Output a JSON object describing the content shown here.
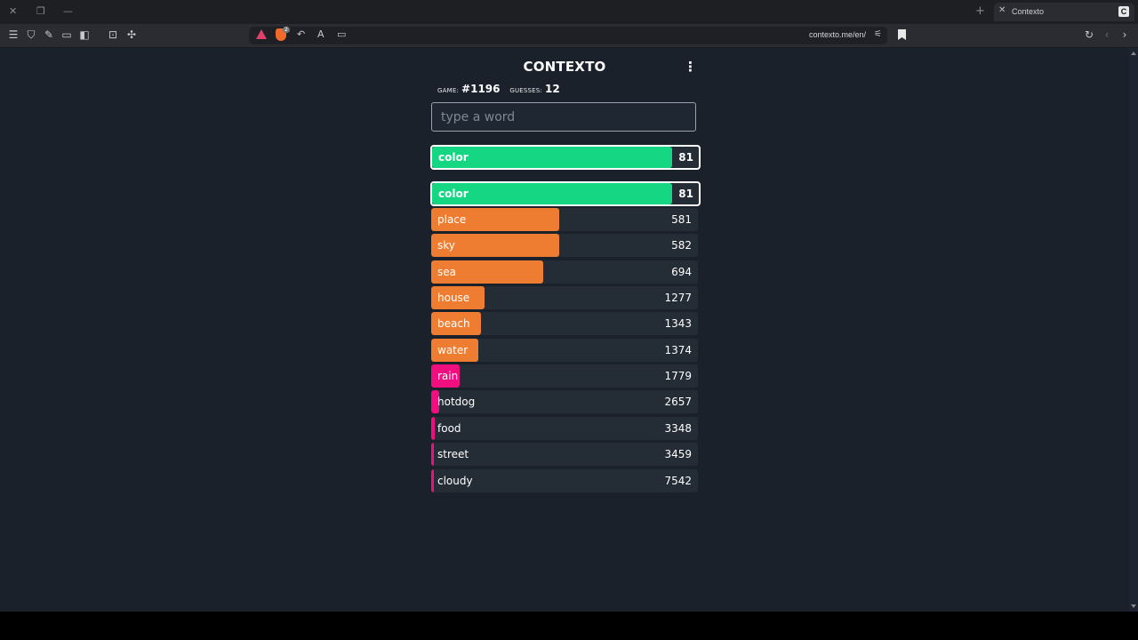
{
  "browser": {
    "tab_title": "Contexto",
    "favicon_letter": "C",
    "url": "contexto.me/en/",
    "shield_count": "2"
  },
  "game": {
    "title": "CONTEXTO",
    "game_label": "GAME:",
    "game_number": "#1196",
    "guesses_label": "GUESSES:",
    "guesses_count": "12",
    "input_placeholder": "type a word",
    "input_value": ""
  },
  "colors": {
    "green": "#15d683",
    "orange": "#ef7d31",
    "pink": "#f10f80",
    "row_bg": "#242c36",
    "page_bg": "#1a212b"
  },
  "last_guess": {
    "word": "color",
    "distance": "81",
    "color": "green",
    "fill": 0.9
  },
  "guesses": [
    {
      "word": "color",
      "distance": "81",
      "color": "green",
      "fill": 0.9
    },
    {
      "word": "place",
      "distance": "581",
      "color": "orange",
      "fill": 0.48
    },
    {
      "word": "sky",
      "distance": "582",
      "color": "orange",
      "fill": 0.48
    },
    {
      "word": "sea",
      "distance": "694",
      "color": "orange",
      "fill": 0.42
    },
    {
      "word": "house",
      "distance": "1277",
      "color": "orange",
      "fill": 0.2
    },
    {
      "word": "beach",
      "distance": "1343",
      "color": "orange",
      "fill": 0.185
    },
    {
      "word": "water",
      "distance": "1374",
      "color": "orange",
      "fill": 0.177
    },
    {
      "word": "rain",
      "distance": "1779",
      "color": "pink",
      "fill": 0.107
    },
    {
      "word": "hotdog",
      "distance": "2657",
      "color": "pink",
      "fill": 0.03
    },
    {
      "word": "food",
      "distance": "3348",
      "color": "pink",
      "fill": 0.012
    },
    {
      "word": "street",
      "distance": "3459",
      "color": "pink",
      "fill": 0.01
    },
    {
      "word": "cloudy",
      "distance": "7542",
      "color": "pink",
      "fill": 0.008
    }
  ]
}
